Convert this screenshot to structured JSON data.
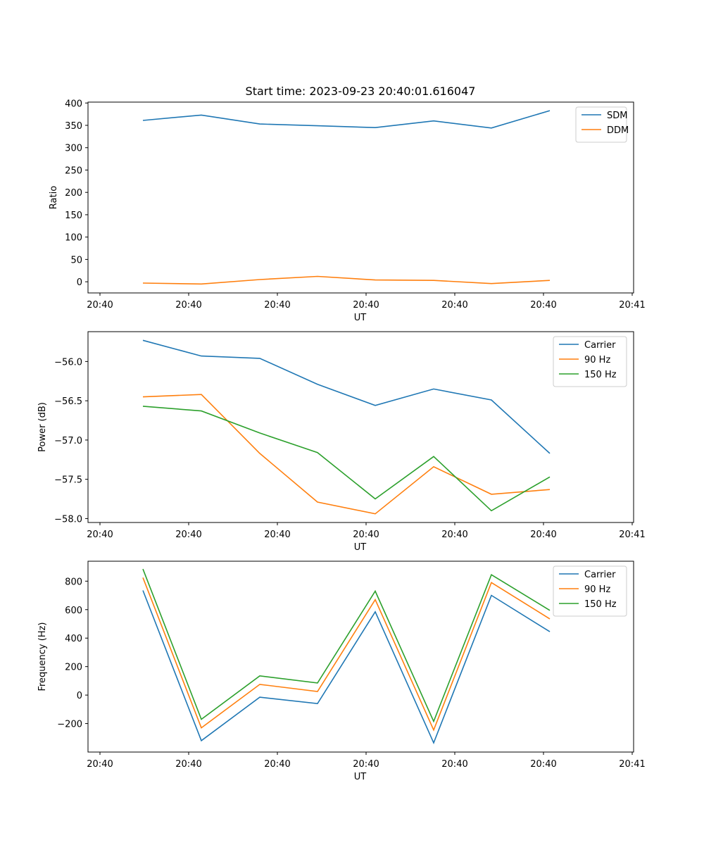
{
  "title": "Start time: 2023-09-23 20:40:01.616047",
  "colors": {
    "blue": "#1f77b4",
    "orange": "#ff7f0e",
    "green": "#2ca02c"
  },
  "chart_data": [
    {
      "type": "line",
      "xlabel": "UT",
      "ylabel": "Ratio",
      "x_tick_labels": [
        "20:40",
        "20:40",
        "20:40",
        "20:40",
        "20:40",
        "20:40",
        "20:41"
      ],
      "x_points": 8,
      "ylim": [
        -25,
        402
      ],
      "yticks": [
        0,
        50,
        100,
        150,
        200,
        250,
        300,
        350,
        400
      ],
      "ytick_labels": [
        "0",
        "50",
        "100",
        "150",
        "200",
        "250",
        "300",
        "350",
        "400"
      ],
      "legend": "upper right",
      "series": [
        {
          "name": "SDM",
          "color": "blue",
          "values": [
            361,
            373,
            353,
            349,
            345,
            360,
            344,
            383
          ]
        },
        {
          "name": "DDM",
          "color": "orange",
          "values": [
            -3,
            -5,
            5,
            12,
            4,
            3,
            -4,
            3
          ]
        }
      ]
    },
    {
      "type": "line",
      "xlabel": "UT",
      "ylabel": "Power (dB)",
      "x_tick_labels": [
        "20:40",
        "20:40",
        "20:40",
        "20:40",
        "20:40",
        "20:40",
        "20:41"
      ],
      "x_points": 8,
      "ylim": [
        -58.05,
        -55.62
      ],
      "yticks": [
        -58.0,
        -57.5,
        -57.0,
        -56.5,
        -56.0
      ],
      "ytick_labels": [
        "−58.0",
        "−57.5",
        "−57.0",
        "−56.5",
        "−56.0"
      ],
      "legend": "upper right",
      "series": [
        {
          "name": "Carrier",
          "color": "blue",
          "values": [
            -55.73,
            -55.93,
            -55.96,
            -56.29,
            -56.56,
            -56.35,
            -56.49,
            -57.17
          ]
        },
        {
          "name": "90 Hz",
          "color": "orange",
          "values": [
            -56.45,
            -56.42,
            -57.17,
            -57.79,
            -57.94,
            -57.34,
            -57.69,
            -57.63
          ]
        },
        {
          "name": "150 Hz",
          "color": "green",
          "values": [
            -56.57,
            -56.63,
            -56.91,
            -57.16,
            -57.75,
            -57.21,
            -57.9,
            -57.47
          ]
        }
      ]
    },
    {
      "type": "line",
      "xlabel": "UT",
      "ylabel": "Frequency (Hz)",
      "x_tick_labels": [
        "20:40",
        "20:40",
        "20:40",
        "20:40",
        "20:40",
        "20:40",
        "20:41"
      ],
      "x_points": 8,
      "ylim": [
        -400,
        940
      ],
      "yticks": [
        -200,
        0,
        200,
        400,
        600,
        800
      ],
      "ytick_labels": [
        "−200",
        "0",
        "200",
        "400",
        "600",
        "800"
      ],
      "legend": "upper right",
      "series": [
        {
          "name": "Carrier",
          "color": "blue",
          "values": [
            735,
            -320,
            -15,
            -60,
            585,
            -335,
            700,
            445
          ]
        },
        {
          "name": "90 Hz",
          "color": "orange",
          "values": [
            825,
            -230,
            75,
            25,
            670,
            -245,
            790,
            535
          ]
        },
        {
          "name": "150 Hz",
          "color": "green",
          "values": [
            885,
            -170,
            135,
            85,
            730,
            -185,
            845,
            595
          ]
        }
      ]
    }
  ]
}
